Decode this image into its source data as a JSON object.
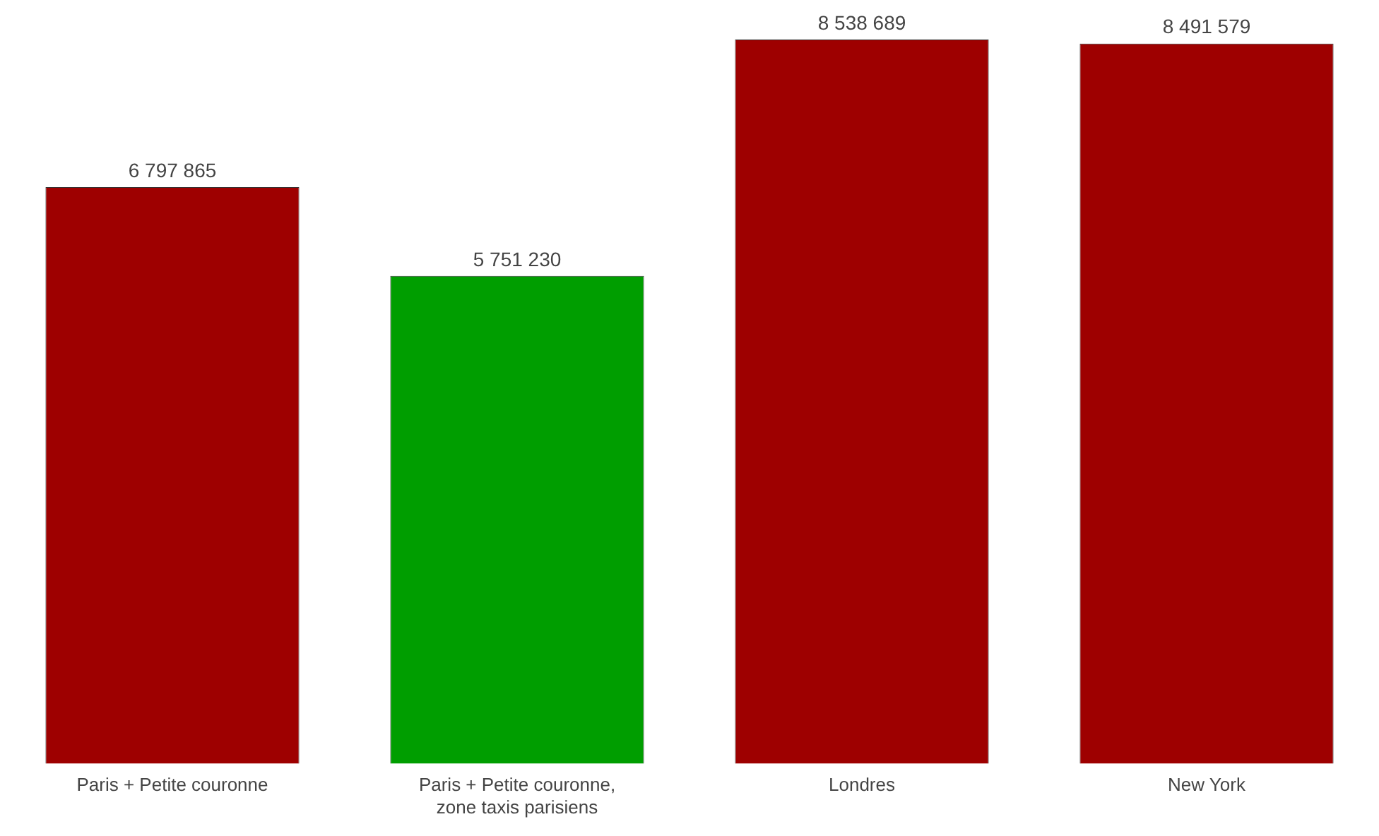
{
  "chart_data": {
    "type": "bar",
    "categories": [
      "Paris + Petite couronne",
      "Paris + Petite couronne, zone taxis parisiens",
      "Londres",
      "New York"
    ],
    "values": [
      6797865,
      5751230,
      8538689,
      8491579
    ],
    "colors": [
      "#9e0000",
      "#009e00",
      "#9e0000",
      "#9e0000"
    ],
    "value_labels": [
      "6 797 865",
      "5 751 230",
      "8 538 689",
      "8 491 579"
    ],
    "grid": false,
    "legend": false
  }
}
